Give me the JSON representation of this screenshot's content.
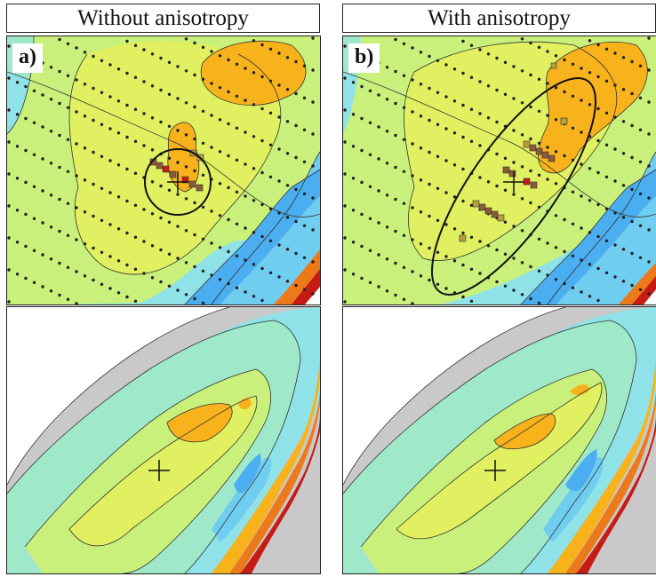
{
  "left": {
    "title": "Without anisotropy",
    "panel_label": "a)"
  },
  "right": {
    "title": "With anisotropy",
    "panel_label": "b)"
  },
  "colors": {
    "deep_blue": "#4aaef0",
    "blue": "#6fcdf0",
    "cyan": "#8fe3e8",
    "teal": "#9fe8c9",
    "light_green": "#c8f07a",
    "yellow_green": "#e0f060",
    "orange": "#f7b21c",
    "dark_orange": "#ec7a1a",
    "red": "#c71b15",
    "dark_red": "#8a0c0c",
    "gray": "#c9c9c9"
  }
}
